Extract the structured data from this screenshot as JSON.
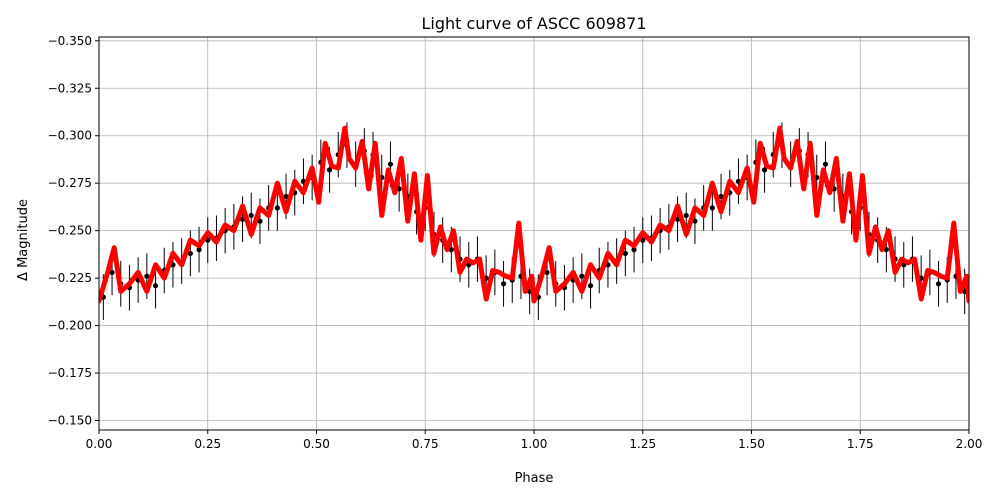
{
  "chart_data": {
    "type": "scatter",
    "title": "Light curve of ASCC 609871",
    "xlabel": "Phase",
    "ylabel": "Δ Magnitude",
    "xlim": [
      0.0,
      2.0
    ],
    "ylim": [
      -0.145,
      -0.352
    ],
    "y_axis_inverted": true,
    "grid": true,
    "xticks": [
      0.0,
      0.25,
      0.5,
      0.75,
      1.0,
      1.25,
      1.5,
      1.75,
      2.0
    ],
    "xtick_labels": [
      "0.00",
      "0.25",
      "0.50",
      "0.75",
      "1.00",
      "1.25",
      "1.50",
      "1.75",
      "2.00"
    ],
    "yticks": [
      -0.35,
      -0.325,
      -0.3,
      -0.275,
      -0.25,
      -0.225,
      -0.2,
      -0.175,
      -0.15
    ],
    "ytick_labels": [
      "−0.350",
      "−0.325",
      "−0.300",
      "−0.275",
      "−0.250",
      "−0.225",
      "−0.200",
      "−0.175",
      "−0.150"
    ],
    "series": [
      {
        "kind": "errorbar-points",
        "color": "#000000",
        "description_of_values": "dense photometric measurements with error bars, phase-folded and repeated over two cycles; sample read from figure",
        "phase": [
          0.01,
          0.03,
          0.05,
          0.07,
          0.09,
          0.11,
          0.13,
          0.15,
          0.17,
          0.19,
          0.21,
          0.23,
          0.25,
          0.27,
          0.29,
          0.31,
          0.33,
          0.35,
          0.37,
          0.39,
          0.41,
          0.43,
          0.45,
          0.47,
          0.49,
          0.51,
          0.53,
          0.55,
          0.57,
          0.59,
          0.61,
          0.63,
          0.65,
          0.67,
          0.69,
          0.71,
          0.73,
          0.75,
          0.77,
          0.79,
          0.81,
          0.83,
          0.85,
          0.87,
          0.89,
          0.91,
          0.93,
          0.95,
          0.97,
          0.99
        ],
        "delta_mag": [
          -0.215,
          -0.228,
          -0.222,
          -0.22,
          -0.224,
          -0.226,
          -0.221,
          -0.229,
          -0.232,
          -0.234,
          -0.238,
          -0.24,
          -0.245,
          -0.246,
          -0.25,
          -0.252,
          -0.256,
          -0.258,
          -0.255,
          -0.262,
          -0.262,
          -0.268,
          -0.27,
          -0.276,
          -0.278,
          -0.286,
          -0.282,
          -0.29,
          -0.295,
          -0.285,
          -0.292,
          -0.29,
          -0.278,
          -0.285,
          -0.272,
          -0.268,
          -0.26,
          -0.262,
          -0.248,
          -0.245,
          -0.24,
          -0.235,
          -0.232,
          -0.235,
          -0.225,
          -0.228,
          -0.222,
          -0.224,
          -0.226,
          -0.218
        ]
      },
      {
        "kind": "model-line",
        "color": "#ff0000",
        "description_of_values": "red harmonic model curve, one cycle (repeats for phase 1–2)",
        "phase": [
          0.0,
          0.02,
          0.035,
          0.05,
          0.07,
          0.09,
          0.11,
          0.13,
          0.15,
          0.17,
          0.19,
          0.21,
          0.23,
          0.25,
          0.27,
          0.29,
          0.31,
          0.33,
          0.35,
          0.37,
          0.39,
          0.41,
          0.43,
          0.45,
          0.47,
          0.49,
          0.505,
          0.52,
          0.535,
          0.55,
          0.565,
          0.575,
          0.59,
          0.605,
          0.62,
          0.635,
          0.65,
          0.665,
          0.68,
          0.695,
          0.71,
          0.725,
          0.74,
          0.755,
          0.77,
          0.785,
          0.8,
          0.815,
          0.83,
          0.845,
          0.86,
          0.875,
          0.89,
          0.905,
          0.92,
          0.935,
          0.95,
          0.965,
          0.98,
          0.995,
          1.0
        ],
        "delta_mag": [
          -0.213,
          -0.228,
          -0.241,
          -0.218,
          -0.222,
          -0.228,
          -0.218,
          -0.232,
          -0.225,
          -0.238,
          -0.232,
          -0.245,
          -0.242,
          -0.249,
          -0.244,
          -0.253,
          -0.25,
          -0.263,
          -0.248,
          -0.262,
          -0.258,
          -0.275,
          -0.26,
          -0.276,
          -0.27,
          -0.283,
          -0.265,
          -0.296,
          -0.284,
          -0.283,
          -0.304,
          -0.288,
          -0.283,
          -0.297,
          -0.272,
          -0.296,
          -0.258,
          -0.282,
          -0.27,
          -0.288,
          -0.255,
          -0.28,
          -0.245,
          -0.279,
          -0.238,
          -0.252,
          -0.24,
          -0.25,
          -0.228,
          -0.235,
          -0.233,
          -0.235,
          -0.214,
          -0.229,
          -0.228,
          -0.226,
          -0.225,
          -0.254,
          -0.218,
          -0.226,
          -0.213
        ]
      }
    ]
  }
}
